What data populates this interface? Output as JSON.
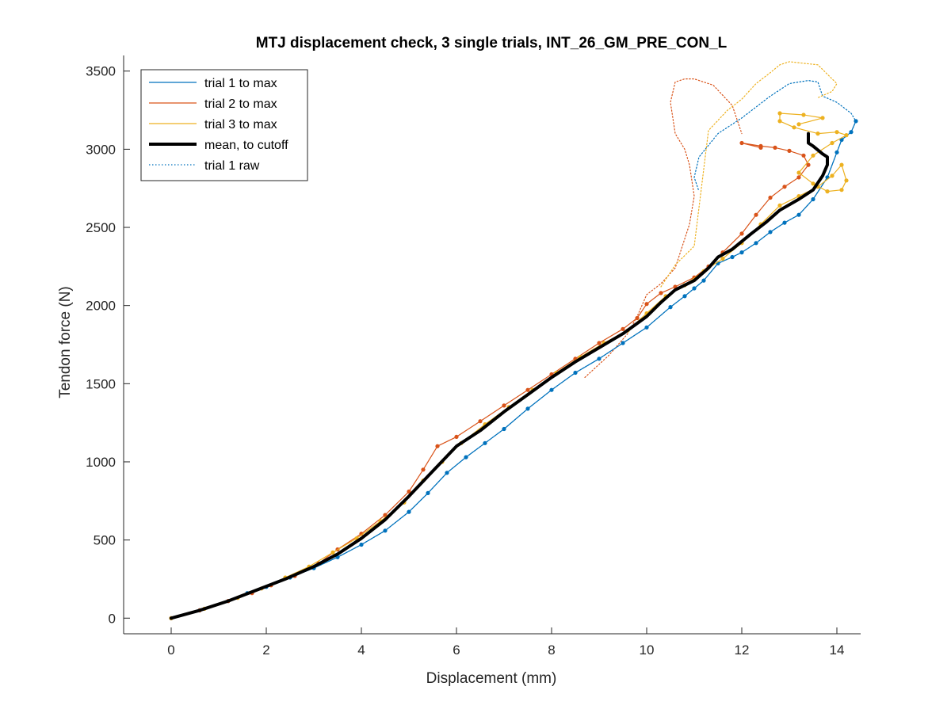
{
  "chart_data": {
    "type": "line",
    "title": "MTJ displacement check, 3 single trials, INT_26_GM_PRE_CON_L",
    "xlabel": "Displacement (mm)",
    "ylabel": "Tendon force (N)",
    "xlim": [
      -1,
      14.5
    ],
    "ylim": [
      -100,
      3600
    ],
    "xticks": [
      0,
      2,
      4,
      6,
      8,
      10,
      12,
      14
    ],
    "yticks": [
      0,
      500,
      1000,
      1500,
      2000,
      2500,
      3000,
      3500
    ],
    "legend_position": "top-left",
    "series": [
      {
        "name": "trial 1 to max",
        "color": "#0072BD",
        "style": "solid-markers",
        "x": [
          0,
          0.6,
          1.2,
          1.6,
          2.0,
          2.5,
          3.0,
          3.5,
          4.0,
          4.5,
          5.0,
          5.4,
          5.8,
          6.2,
          6.6,
          7.0,
          7.5,
          8.0,
          8.5,
          9.0,
          9.5,
          10.0,
          10.5,
          10.8,
          11.0,
          11.2,
          11.5,
          11.8,
          12.0,
          12.3,
          12.6,
          12.9,
          13.2,
          13.5,
          13.8,
          14.0,
          14.1,
          14.3,
          14.4
        ],
        "y": [
          0,
          50,
          110,
          160,
          200,
          260,
          320,
          390,
          470,
          560,
          680,
          800,
          930,
          1030,
          1120,
          1210,
          1340,
          1460,
          1570,
          1660,
          1760,
          1860,
          1990,
          2060,
          2110,
          2160,
          2270,
          2310,
          2340,
          2400,
          2470,
          2530,
          2580,
          2680,
          2820,
          2980,
          3060,
          3110,
          3180
        ]
      },
      {
        "name": "trial 2 to max",
        "color": "#D95319",
        "style": "solid-markers",
        "x": [
          0,
          0.6,
          1.2,
          1.7,
          2.1,
          2.6,
          3.1,
          3.5,
          4.0,
          4.5,
          5.0,
          5.3,
          5.6,
          6.0,
          6.5,
          7.0,
          7.5,
          8.0,
          8.5,
          9.0,
          9.5,
          9.8,
          10.0,
          10.3,
          10.6,
          11.0,
          11.3,
          11.6,
          12.0,
          12.3,
          12.6,
          12.9,
          13.2,
          13.4,
          13.3,
          13.0,
          12.7,
          12.4,
          12.0,
          12.4
        ],
        "y": [
          0,
          50,
          110,
          160,
          210,
          270,
          350,
          440,
          540,
          660,
          810,
          950,
          1100,
          1160,
          1260,
          1360,
          1460,
          1560,
          1660,
          1760,
          1850,
          1920,
          2010,
          2080,
          2120,
          2180,
          2250,
          2340,
          2460,
          2580,
          2690,
          2760,
          2820,
          2900,
          2960,
          2990,
          3010,
          3020,
          3040,
          3010
        ]
      },
      {
        "name": "trial 3 to max",
        "color": "#EDB120",
        "style": "solid-markers",
        "x": [
          0,
          0.7,
          1.4,
          1.9,
          2.4,
          2.9,
          3.4,
          3.9,
          4.4,
          4.9,
          5.3,
          5.7,
          6.1,
          6.6,
          7.1,
          7.6,
          8.1,
          8.6,
          9.1,
          9.6,
          10.0,
          10.4,
          10.8,
          11.2,
          11.6,
          12.0,
          12.4,
          12.8,
          13.2,
          13.6,
          13.9,
          14.1,
          14.2,
          14.1,
          13.8,
          13.5,
          13.2,
          13.5,
          13.9,
          14.2,
          14.0,
          13.6,
          13.1,
          12.8,
          12.8,
          13.3,
          13.7,
          13.2
        ],
        "y": [
          0,
          60,
          130,
          190,
          260,
          330,
          420,
          510,
          620,
          740,
          880,
          1000,
          1120,
          1240,
          1350,
          1460,
          1570,
          1670,
          1760,
          1840,
          1950,
          2060,
          2130,
          2220,
          2300,
          2400,
          2520,
          2640,
          2700,
          2760,
          2830,
          2900,
          2800,
          2740,
          2730,
          2780,
          2850,
          2960,
          3040,
          3090,
          3110,
          3100,
          3140,
          3180,
          3230,
          3220,
          3200,
          3160
        ]
      },
      {
        "name": "mean, to cutoff",
        "color": "#000000",
        "style": "thick",
        "x": [
          0,
          0.6,
          1.2,
          1.8,
          2.4,
          3.0,
          3.5,
          4.0,
          4.5,
          5.0,
          5.5,
          6.0,
          6.5,
          7.0,
          7.5,
          8.0,
          8.5,
          9.0,
          9.5,
          10.0,
          10.3,
          10.6,
          11.0,
          11.3,
          11.5,
          11.8,
          12.2,
          12.5,
          12.8,
          13.2,
          13.5,
          13.7,
          13.8,
          13.8,
          13.7,
          13.5,
          13.4,
          13.4
        ],
        "y": [
          0,
          50,
          110,
          180,
          250,
          330,
          410,
          510,
          630,
          780,
          940,
          1100,
          1200,
          1320,
          1430,
          1540,
          1640,
          1730,
          1820,
          1930,
          2020,
          2100,
          2160,
          2240,
          2310,
          2360,
          2460,
          2530,
          2610,
          2680,
          2740,
          2830,
          2900,
          2950,
          2970,
          3020,
          3040,
          3100
        ]
      },
      {
        "name": "trial 1 raw",
        "color": "#0072BD",
        "style": "dotted",
        "x": [
          0,
          0.6,
          1.2,
          1.6,
          2.0,
          2.5,
          3.0,
          3.5,
          4.0,
          4.5,
          5.0,
          5.4,
          5.8,
          6.2,
          6.6,
          7.0,
          7.5,
          8.0,
          8.5,
          9.0,
          9.5,
          10.0,
          10.5,
          10.8,
          11.0,
          11.2,
          11.5,
          11.8,
          12.0,
          12.3,
          12.6,
          12.9,
          13.2,
          13.5,
          13.8,
          14.0,
          14.1,
          14.3,
          14.4,
          14.3,
          14.0,
          13.7,
          13.6,
          13.4,
          13.0,
          12.6,
          12.0,
          11.5,
          11.1,
          11.0,
          11.1
        ],
        "y": [
          0,
          50,
          110,
          160,
          200,
          260,
          320,
          390,
          470,
          560,
          680,
          800,
          930,
          1030,
          1120,
          1210,
          1340,
          1460,
          1570,
          1660,
          1760,
          1860,
          1990,
          2060,
          2110,
          2160,
          2270,
          2310,
          2340,
          2400,
          2470,
          2530,
          2580,
          2680,
          2820,
          2980,
          3060,
          3110,
          3180,
          3230,
          3300,
          3340,
          3430,
          3440,
          3420,
          3340,
          3200,
          3100,
          2950,
          2820,
          2730
        ]
      },
      {
        "color": "#D95319",
        "style": "dotted",
        "x": [
          8.7,
          9.2,
          9.6,
          9.8,
          10.0,
          10.3,
          10.6,
          10.9,
          11.0,
          10.9,
          10.8,
          10.6,
          10.5,
          10.6,
          10.8,
          11.0,
          11.4,
          11.8,
          12.0
        ],
        "y": [
          1540,
          1680,
          1820,
          1930,
          2070,
          2140,
          2240,
          2520,
          2700,
          2900,
          3000,
          3100,
          3300,
          3430,
          3450,
          3450,
          3410,
          3280,
          3100
        ]
      },
      {
        "color": "#EDB120",
        "style": "dotted",
        "x": [
          10.3,
          10.6,
          11.0,
          11.3,
          11.7,
          12.0,
          12.3,
          12.6,
          12.8,
          13.0,
          13.3,
          13.6,
          13.8,
          14.0,
          13.9,
          13.6
        ],
        "y": [
          2120,
          2260,
          2380,
          3120,
          3250,
          3320,
          3420,
          3490,
          3540,
          3560,
          3550,
          3540,
          3480,
          3420,
          3370,
          3330
        ]
      }
    ]
  }
}
